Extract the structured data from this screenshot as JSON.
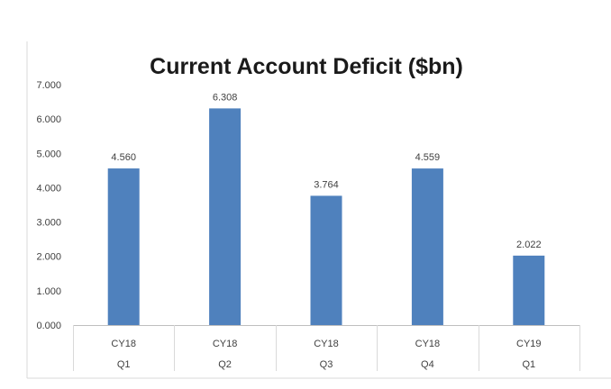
{
  "chart_data": {
    "type": "bar",
    "title": "Current Account Deficit ($bn)",
    "xlabel": "",
    "ylabel": "",
    "ylim": [
      0,
      7
    ],
    "y_ticks": [
      "0.000",
      "1.000",
      "2.000",
      "3.000",
      "4.000",
      "5.000",
      "6.000",
      "7.000"
    ],
    "categories": [
      {
        "year": "CY18",
        "quarter": "Q1"
      },
      {
        "year": "CY18",
        "quarter": "Q2"
      },
      {
        "year": "CY18",
        "quarter": "Q3"
      },
      {
        "year": "CY18",
        "quarter": "Q4"
      },
      {
        "year": "CY19",
        "quarter": "Q1"
      }
    ],
    "values": [
      4.56,
      6.308,
      3.764,
      4.559,
      2.022
    ],
    "data_labels": [
      "4.560",
      "6.308",
      "3.764",
      "4.559",
      "2.022"
    ],
    "bar_color": "#4f81bd",
    "grid": false,
    "legend": "none"
  }
}
